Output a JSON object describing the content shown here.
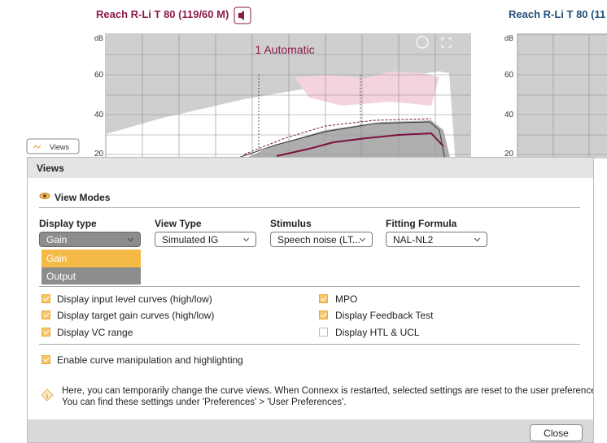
{
  "header": {
    "left_title": "Reach R-Li T 80 (119/60 M)",
    "right_title": "Reach R-Li T 80 (11"
  },
  "left_chart": {
    "unit": "dB",
    "axis_labels": [
      "60",
      "40",
      "20"
    ],
    "program": "1 Automatic"
  },
  "right_chart": {
    "unit": "dB",
    "axis_labels": [
      "60",
      "40",
      "20"
    ]
  },
  "views_button": "Views",
  "dialog": {
    "title": "Views",
    "section": "View Modes",
    "columns": [
      {
        "label": "Display type",
        "value": "Gain"
      },
      {
        "label": "View Type",
        "value": "Simulated IG"
      },
      {
        "label": "Stimulus",
        "value": "Speech noise (LT..."
      },
      {
        "label": "Fitting Formula",
        "value": "NAL-NL2"
      }
    ],
    "dropdown_options": [
      "Gain",
      "Output"
    ],
    "checkboxes": [
      {
        "label": "Display input level curves (high/low)",
        "checked": true
      },
      {
        "label": "Display target gain curves (high/low)",
        "checked": true
      },
      {
        "label": "Display VC range",
        "checked": true
      },
      {
        "label": "MPO",
        "checked": true
      },
      {
        "label": "Display Feedback Test",
        "checked": true
      },
      {
        "label": "Display HTL & UCL",
        "checked": false
      },
      {
        "label": "Enable curve manipulation and highlighting",
        "checked": true
      }
    ],
    "info_lines": [
      "Here, you can temporarily change the curve views. When Connexx is restarted, selected settings are reset to the user preferences.",
      "You can find these settings under 'Preferences' > 'User Preferences'."
    ],
    "close": "Close"
  }
}
